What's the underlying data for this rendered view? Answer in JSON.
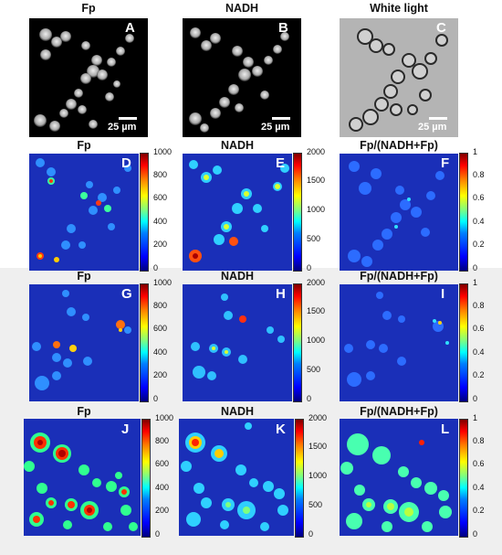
{
  "row1": {
    "panels": [
      {
        "title": "Fp",
        "letter": "A",
        "scale": "25 µm"
      },
      {
        "title": "NADH",
        "letter": "B",
        "scale": "25 µm"
      },
      {
        "title": "White light",
        "letter": "C",
        "scale": "25 µm"
      }
    ]
  },
  "row2": {
    "panels": [
      {
        "title": "Fp",
        "letter": "D",
        "ticks": [
          "1000",
          "800",
          "600",
          "400",
          "200",
          "0"
        ]
      },
      {
        "title": "NADH",
        "letter": "E",
        "ticks": [
          "2000",
          "1500",
          "1000",
          "500",
          "0"
        ]
      },
      {
        "title": "Fp/(NADH+Fp)",
        "letter": "F",
        "ticks": [
          "1",
          "0.8",
          "0.6",
          "0.4",
          "0.2",
          "0"
        ]
      }
    ]
  },
  "row3": {
    "panels": [
      {
        "title": "Fp",
        "letter": "G",
        "ticks": [
          "1000",
          "800",
          "600",
          "400",
          "200",
          "0"
        ]
      },
      {
        "title": "NADH",
        "letter": "H",
        "ticks": [
          "2000",
          "1500",
          "1000",
          "500",
          "0"
        ]
      },
      {
        "title": "Fp/(NADH+Fp)",
        "letter": "I",
        "ticks": [
          "1",
          "0.8",
          "0.6",
          "0.4",
          "0.2",
          "0"
        ]
      }
    ]
  },
  "row4": {
    "panels": [
      {
        "title": "Fp",
        "letter": "J",
        "ticks": [
          "1000",
          "800",
          "600",
          "400",
          "200",
          "0"
        ]
      },
      {
        "title": "NADH",
        "letter": "K",
        "ticks": [
          "2000",
          "1500",
          "1000",
          "500",
          "0"
        ]
      },
      {
        "title": "Fp/(NADH+Fp)",
        "letter": "L",
        "ticks": [
          "1",
          "0.8",
          "0.6",
          "0.4",
          "0.2",
          "0"
        ]
      }
    ]
  },
  "colors": {
    "heatmap_background": "#1a2fb8",
    "band": "#efefef"
  }
}
